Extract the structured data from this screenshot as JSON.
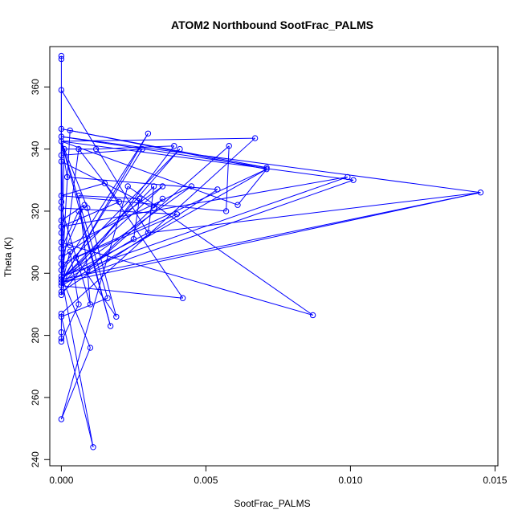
{
  "chart_data": {
    "type": "scatter",
    "title": "ATOM2 Northbound SootFrac_PALMS",
    "xlabel": "SootFrac_PALMS",
    "ylabel": "Theta (K)",
    "xlim": [
      -0.0004,
      0.0151
    ],
    "ylim": [
      238,
      373
    ],
    "x_ticks": [
      "0.000",
      "0.005",
      "0.010",
      "0.015"
    ],
    "x_tick_values": [
      0.0,
      0.005,
      0.01,
      0.015
    ],
    "y_ticks": [
      "240",
      "260",
      "280",
      "300",
      "320",
      "340",
      "360"
    ],
    "y_tick_values": [
      240,
      260,
      280,
      300,
      320,
      340,
      360
    ],
    "grid": false,
    "series_color": "#0000ff",
    "marker": "open-circle",
    "connected": true,
    "points": [
      [
        0.0,
        370.0
      ],
      [
        0.0,
        369.0
      ],
      [
        0.0,
        359.0
      ],
      [
        0.0,
        346.5
      ],
      [
        0.0,
        344.0
      ],
      [
        0.0,
        342.5
      ],
      [
        0.003,
        345.0
      ],
      [
        0.0003,
        346.0
      ],
      [
        0.0067,
        343.5
      ],
      [
        0.0001,
        340.0
      ],
      [
        0.0028,
        340.0
      ],
      [
        0.0039,
        341.0
      ],
      [
        0.0058,
        341.0
      ],
      [
        0.0041,
        340.0
      ],
      [
        0.0006,
        340.0
      ],
      [
        0.0012,
        340.0
      ],
      [
        0.0071,
        334.0
      ],
      [
        0.0,
        338.0
      ],
      [
        0.0071,
        333.5
      ],
      [
        0.0,
        336.0
      ],
      [
        0.0099,
        331.0
      ],
      [
        0.0101,
        330.0
      ],
      [
        0.0002,
        331.0
      ],
      [
        0.0015,
        329.0
      ],
      [
        0.0023,
        328.0
      ],
      [
        0.0032,
        328.0
      ],
      [
        0.0035,
        328.0
      ],
      [
        0.0045,
        328.0
      ],
      [
        0.0054,
        327.0
      ],
      [
        0.0145,
        326.0
      ],
      [
        0.0,
        325.0
      ],
      [
        0.0006,
        325.0
      ],
      [
        0.0,
        323.0
      ],
      [
        0.002,
        323.0
      ],
      [
        0.0027,
        324.0
      ],
      [
        0.0035,
        324.0
      ],
      [
        0.0061,
        322.0
      ],
      [
        0.0008,
        322.0
      ],
      [
        0.0,
        321.0
      ],
      [
        0.0009,
        321.0
      ],
      [
        0.0057,
        320.0
      ],
      [
        0.0032,
        321.0
      ],
      [
        0.0006,
        320.0
      ],
      [
        0.004,
        319.0
      ],
      [
        0.0,
        317.0
      ],
      [
        0.0,
        315.0
      ],
      [
        0.0,
        313.0
      ],
      [
        0.003,
        313.0
      ],
      [
        0.0025,
        311.0
      ],
      [
        0.0,
        310.0
      ],
      [
        0.0003,
        309.0
      ],
      [
        0.0,
        308.0
      ],
      [
        0.0003,
        307.0
      ],
      [
        0.0,
        305.0
      ],
      [
        0.0005,
        305.0
      ],
      [
        0.0,
        303.0
      ],
      [
        0.0,
        301.0
      ],
      [
        0.0009,
        301.0
      ],
      [
        0.0,
        299.0
      ],
      [
        0.0001,
        299.0
      ],
      [
        0.0,
        298.0
      ],
      [
        0.0,
        297.0
      ],
      [
        0.0,
        296.0
      ],
      [
        0.0,
        294.0
      ],
      [
        0.0,
        293.0
      ],
      [
        0.0042,
        292.0
      ],
      [
        0.0016,
        292.0
      ],
      [
        0.001,
        290.0
      ],
      [
        0.0006,
        290.0
      ],
      [
        0.0,
        287.0
      ],
      [
        0.0,
        286.0
      ],
      [
        0.0087,
        286.5
      ],
      [
        0.0019,
        286.0
      ],
      [
        0.0017,
        283.0
      ],
      [
        0.0,
        281.0
      ],
      [
        0.0,
        279.0
      ],
      [
        0.0,
        278.0
      ],
      [
        0.001,
        276.0
      ],
      [
        0.0,
        253.0
      ],
      [
        0.0011,
        244.0
      ]
    ],
    "path_order": [
      0,
      1,
      2,
      3,
      16,
      4,
      29,
      60,
      14,
      33,
      45,
      20,
      58,
      9,
      15,
      11,
      64,
      17,
      10,
      59,
      5,
      21,
      61,
      6,
      56,
      13,
      62,
      18,
      36,
      5,
      22,
      28,
      63,
      19,
      41,
      35,
      57,
      12,
      40,
      30,
      23,
      65,
      62,
      7,
      18,
      55,
      3,
      32,
      46,
      44,
      37,
      53,
      26,
      60,
      25,
      47,
      59,
      27,
      51,
      42,
      73,
      5,
      39,
      72,
      54,
      43,
      38,
      67,
      57,
      31,
      34,
      48,
      61,
      29,
      47,
      2,
      49,
      50,
      71,
      24,
      78,
      77,
      58,
      79,
      70,
      66,
      5,
      8,
      69,
      74,
      75,
      76,
      68,
      52,
      62,
      64
    ]
  }
}
